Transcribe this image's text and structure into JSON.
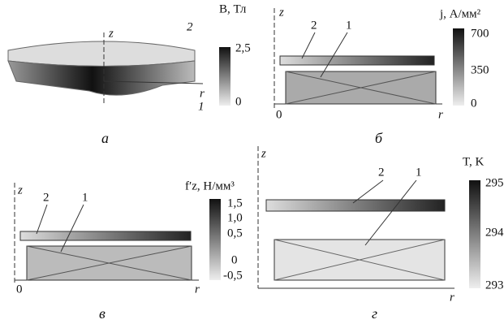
{
  "panels": [
    {
      "caption": "а",
      "axis_z": "z",
      "axis_r": "r",
      "labels": [
        "2",
        "1"
      ],
      "colorbar": {
        "title": "B, Тл",
        "ticks": [
          "2,5",
          "0"
        ]
      }
    },
    {
      "caption": "б",
      "axis_z": "z",
      "axis_r": "r",
      "origin": "0",
      "labels": [
        "2",
        "1"
      ],
      "colorbar": {
        "title": "j, А/мм²",
        "ticks": [
          "700",
          "350",
          "0"
        ]
      }
    },
    {
      "caption": "в",
      "axis_z": "z",
      "axis_r": "r",
      "origin": "0",
      "labels": [
        "2",
        "1"
      ],
      "colorbar": {
        "title": "f′z, Н/мм³",
        "ticks": [
          "1,5",
          "1,0",
          "0,5",
          "0",
          "-0,5"
        ]
      }
    },
    {
      "caption": "г",
      "axis_z": "z",
      "axis_r": "r",
      "labels": [
        "2",
        "1"
      ],
      "colorbar": {
        "title": "T, K",
        "ticks": [
          "295",
          "294",
          "293"
        ]
      }
    }
  ]
}
